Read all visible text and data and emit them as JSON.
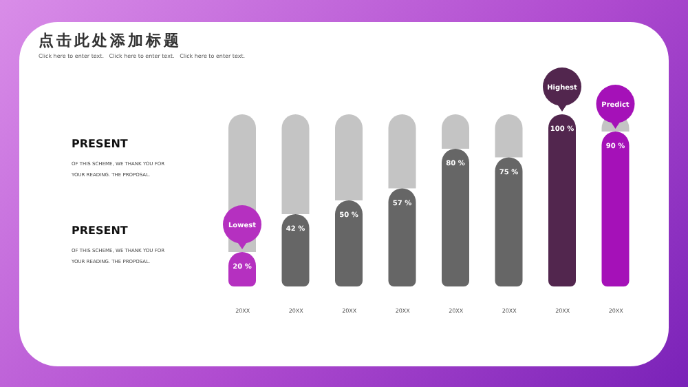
{
  "chart_data": {
    "type": "bar",
    "title": "点击此处添加标题",
    "subtitle": "Click here to enter text.   Click here to enter text.   Click here to enter text.",
    "categories": [
      "20XX",
      "20XX",
      "20XX",
      "20XX",
      "20XX",
      "20XX",
      "20XX",
      "20XX"
    ],
    "values": [
      20,
      42,
      50,
      57,
      80,
      75,
      100,
      90
    ],
    "colors": [
      "#b530c0",
      "#666666",
      "#666666",
      "#666666",
      "#666666",
      "#666666",
      "#52264e",
      "#a511b8"
    ],
    "value_labels": [
      "20 %",
      "42 %",
      "50 %",
      "57 %",
      "80 %",
      "75 %",
      "100 %",
      "90 %"
    ],
    "ylim": [
      0,
      100
    ],
    "annotations": [
      "Lowest",
      "Highest",
      "Predict",
      "PRESENT",
      "OF THIS SCHEME, WE THANK YOU FOR YOUR READING. THE PROPOSAL.",
      "PRESENT",
      "OF THIS SCHEME, WE THANK YOU FOR YOUR READING. THE PROPOSAL."
    ],
    "legend": false,
    "grid": false
  }
}
